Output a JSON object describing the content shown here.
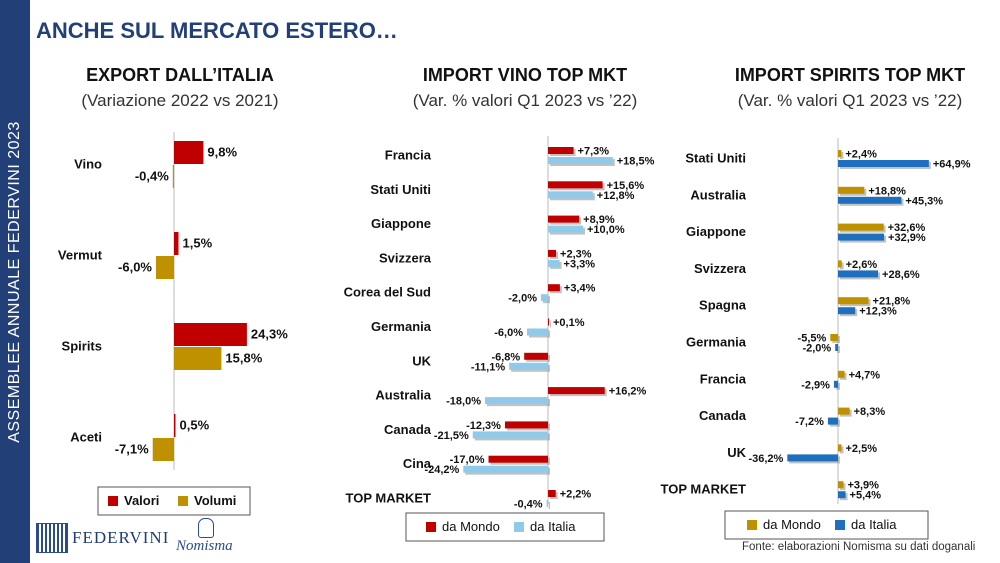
{
  "page": {
    "title": "ANCHE SUL MERCATO ESTERO…",
    "sidebar": "ASSEMBLEE ANNUALE FEDERVINI 2023",
    "source": "Fonte: elaborazioni Nomisma su dati doganali",
    "logos": {
      "federvini": "FEDERVINI",
      "nomisma": "Nomisma"
    }
  },
  "panels": {
    "export": {
      "title": "EXPORT DALL’ITALIA",
      "subtitle": "(Variazione 2022 vs 2021)"
    },
    "vino": {
      "title": "IMPORT VINO TOP MKT",
      "subtitle": "(Var. % valori Q1 2023 vs ’22)"
    },
    "spirits": {
      "title": "IMPORT SPIRITS TOP MKT",
      "subtitle": "(Var. % valori Q1 2023 vs ’22)"
    }
  },
  "colors": {
    "valori": "#c00000",
    "volumi": "#bf9000",
    "mondo_vino": "#c00000",
    "italia_vino": "#8fcaea",
    "mondo_spirits": "#bf9000",
    "italia_spirits": "#1f6fbf"
  },
  "chart_data": [
    {
      "type": "bar",
      "title": "EXPORT DALL’ITALIA",
      "subtitle": "(Variazione 2022 vs 2021)",
      "categories": [
        "Vino",
        "Vermut",
        "Spirits",
        "Aceti"
      ],
      "series": [
        {
          "name": "Valori",
          "values": [
            9.8,
            1.5,
            24.3,
            0.5
          ],
          "labels": [
            "9,8%",
            "1,5%",
            "24,3%",
            "0,5%"
          ]
        },
        {
          "name": "Volumi",
          "values": [
            -0.4,
            -6.0,
            15.8,
            -7.1
          ],
          "labels": [
            "-0,4%",
            "-6,0%",
            "15,8%",
            "-7,1%"
          ]
        }
      ],
      "legend": "bottom"
    },
    {
      "type": "bar",
      "title": "IMPORT VINO TOP MKT",
      "subtitle": "(Var. % valori Q1 2023 vs ’22)",
      "categories": [
        "Francia",
        "Stati Uniti",
        "Giappone",
        "Svizzera",
        "Corea del Sud",
        "Germania",
        "UK",
        "Australia",
        "Canada",
        "Cina",
        "TOP MARKET"
      ],
      "series": [
        {
          "name": "da Mondo",
          "values": [
            7.3,
            15.6,
            8.9,
            2.3,
            3.4,
            0.1,
            -6.8,
            16.2,
            -12.3,
            -17.0,
            2.2
          ],
          "labels": [
            "+7,3%",
            "+15,6%",
            "+8,9%",
            "+2,3%",
            "+3,4%",
            "+0,1%",
            "-6,8%",
            "+16,2%",
            "-12,3%",
            "-17,0%",
            "+2,2%"
          ]
        },
        {
          "name": "da Italia",
          "values": [
            18.5,
            12.8,
            10.0,
            3.3,
            -2.0,
            -6.0,
            -11.1,
            -18.0,
            -21.5,
            -24.2,
            -0.4
          ],
          "labels": [
            "+18,5%",
            "+12,8%",
            "+10,0%",
            "+3,3%",
            "-2,0%",
            "-6,0%",
            "-11,1%",
            "-18,0%",
            "-21,5%",
            "-24,2%",
            "-0,4%"
          ]
        }
      ],
      "legend": "bottom"
    },
    {
      "type": "bar",
      "title": "IMPORT SPIRITS TOP MKT",
      "subtitle": "(Var. % valori Q1 2023 vs ’22)",
      "categories": [
        "Stati Uniti",
        "Australia",
        "Giappone",
        "Svizzera",
        "Spagna",
        "Germania",
        "Francia",
        "Canada",
        "UK",
        "TOP MARKET"
      ],
      "series": [
        {
          "name": "da Mondo",
          "values": [
            2.4,
            18.8,
            32.6,
            2.6,
            21.8,
            -5.5,
            4.7,
            8.3,
            2.5,
            3.9
          ],
          "labels": [
            "+2,4%",
            "+18,8%",
            "+32,6%",
            "+2,6%",
            "+21,8%",
            "-5,5%",
            "+4,7%",
            "+8,3%",
            "+2,5%",
            "+3,9%"
          ]
        },
        {
          "name": "da Italia",
          "values": [
            64.9,
            45.3,
            32.9,
            28.6,
            12.3,
            -2.0,
            -2.9,
            -7.2,
            -36.2,
            5.4
          ],
          "labels": [
            "+64,9%",
            "+45,3%",
            "+32,9%",
            "+28,6%",
            "+12,3%",
            "-2,0%",
            "-2,9%",
            "-7,2%",
            "-36,2%",
            "+5,4%"
          ]
        }
      ],
      "legend": "bottom"
    }
  ]
}
